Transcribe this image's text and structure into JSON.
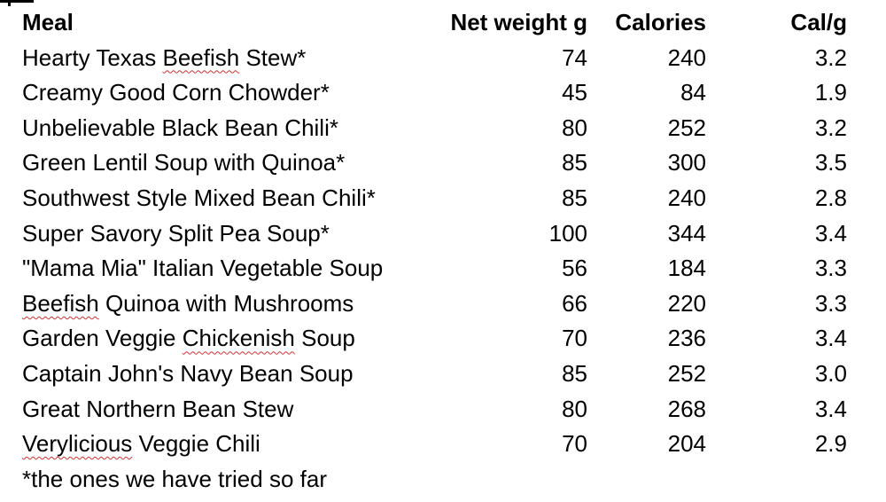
{
  "page": {
    "background_color": "#ffffff",
    "text_color": "#000000",
    "squiggle_color": "#cc3333"
  },
  "table": {
    "columns": [
      {
        "label": "Meal",
        "align": "left"
      },
      {
        "label": "Net weight g",
        "align": "right"
      },
      {
        "label": "Calories",
        "align": "right"
      },
      {
        "label": "Cal/g",
        "align": "right"
      }
    ],
    "rows": [
      {
        "meal": [
          {
            "t": "Hearty Texas "
          },
          {
            "t": "Beefish",
            "misspelled": true
          },
          {
            "t": " Stew*"
          }
        ],
        "net_weight_g": "74",
        "calories": "240",
        "cal_per_g": "3.2"
      },
      {
        "meal": [
          {
            "t": "Creamy Good Corn Chowder*"
          }
        ],
        "net_weight_g": "45",
        "calories": "84",
        "cal_per_g": "1.9"
      },
      {
        "meal": [
          {
            "t": "Unbelievable Black Bean Chili*"
          }
        ],
        "net_weight_g": "80",
        "calories": "252",
        "cal_per_g": "3.2"
      },
      {
        "meal": [
          {
            "t": "Green Lentil Soup with Quinoa*"
          }
        ],
        "net_weight_g": "85",
        "calories": "300",
        "cal_per_g": "3.5"
      },
      {
        "meal": [
          {
            "t": "Southwest Style Mixed Bean Chili*"
          }
        ],
        "net_weight_g": "85",
        "calories": "240",
        "cal_per_g": "2.8"
      },
      {
        "meal": [
          {
            "t": "Super Savory Split Pea Soup*"
          }
        ],
        "net_weight_g": "100",
        "calories": "344",
        "cal_per_g": "3.4"
      },
      {
        "meal": [
          {
            "t": "\"Mama Mia\" Italian Vegetable Soup"
          }
        ],
        "net_weight_g": "56",
        "calories": "184",
        "cal_per_g": "3.3"
      },
      {
        "meal": [
          {
            "t": "Beefish",
            "misspelled": true
          },
          {
            "t": " Quinoa with Mushrooms"
          }
        ],
        "net_weight_g": "66",
        "calories": "220",
        "cal_per_g": "3.3"
      },
      {
        "meal": [
          {
            "t": "Garden Veggie "
          },
          {
            "t": "Chickenish",
            "misspelled": true
          },
          {
            "t": " Soup"
          }
        ],
        "net_weight_g": "70",
        "calories": "236",
        "cal_per_g": "3.4"
      },
      {
        "meal": [
          {
            "t": "Captain John's Navy Bean Soup"
          }
        ],
        "net_weight_g": "85",
        "calories": "252",
        "cal_per_g": "3.0"
      },
      {
        "meal": [
          {
            "t": "Great Northern Bean Stew"
          }
        ],
        "net_weight_g": "80",
        "calories": "268",
        "cal_per_g": "3.4"
      },
      {
        "meal": [
          {
            "t": "Verylicious",
            "misspelled": true
          },
          {
            "t": " Veggie Chili"
          }
        ],
        "net_weight_g": "70",
        "calories": "204",
        "cal_per_g": "2.9"
      }
    ],
    "footnote": "*the ones we have tried so far"
  }
}
